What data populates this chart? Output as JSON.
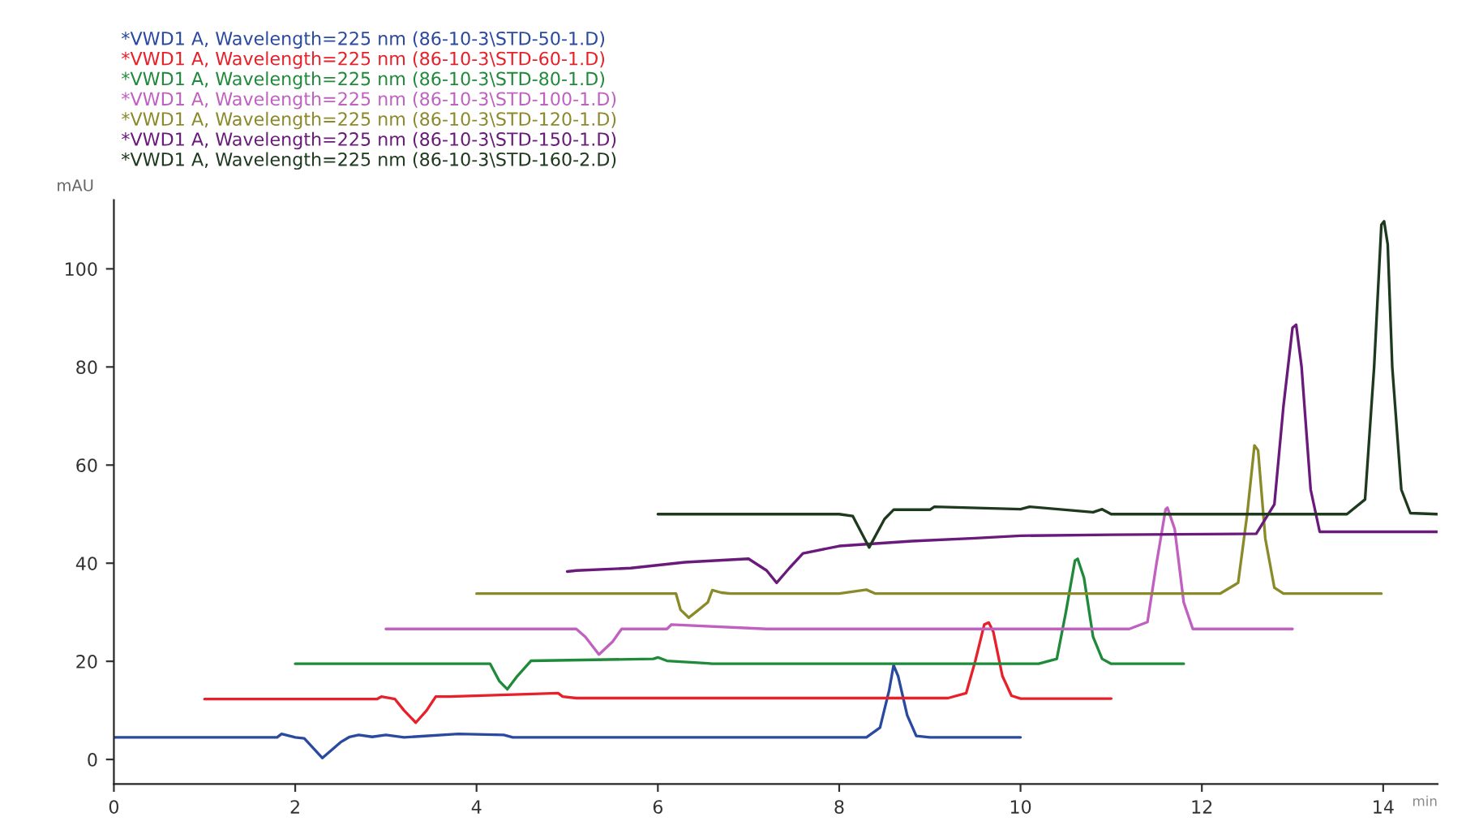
{
  "chart_data": {
    "type": "line",
    "xlabel": "min",
    "ylabel": "mAU",
    "xlim": [
      0,
      14.6
    ],
    "ylim": [
      -5,
      114
    ],
    "xticks": [
      0,
      2,
      4,
      6,
      8,
      10,
      12,
      14
    ],
    "yticks": [
      0,
      20,
      40,
      60,
      80,
      100
    ],
    "grid": false,
    "legend": "top left",
    "marker": "none",
    "line_style": "solid",
    "series": [
      {
        "name": "*VWD1 A, Wavelength=225 nm (86-10-3\\STD-50-1.D)",
        "color": "#2a4aa0",
        "x": [
          0,
          1.8,
          1.85,
          2.0,
          2.1,
          2.3,
          2.5,
          2.6,
          2.7,
          2.85,
          3.0,
          3.2,
          3.8,
          4.3,
          4.4,
          8.3,
          8.45,
          8.55,
          8.6,
          8.65,
          8.75,
          8.85,
          9.0,
          10
        ],
        "values": [
          4.5,
          4.5,
          5.2,
          4.5,
          4.3,
          0.3,
          3.5,
          4.6,
          5.0,
          4.6,
          5.0,
          4.5,
          5.2,
          5.0,
          4.5,
          4.5,
          6.5,
          14,
          19.2,
          17,
          9,
          4.8,
          4.5,
          4.5
        ]
      },
      {
        "name": "*VWD1 A, Wavelength=225 nm (86-10-3\\STD-60-1.D)",
        "color": "#e8202a",
        "x": [
          1,
          2.9,
          2.95,
          3.1,
          3.2,
          3.33,
          3.45,
          3.55,
          3.7,
          4.9,
          4.95,
          5.1,
          9.2,
          9.4,
          9.5,
          9.6,
          9.65,
          9.7,
          9.8,
          9.9,
          10.0,
          11.0
        ],
        "values": [
          12.3,
          12.3,
          12.8,
          12.3,
          10,
          7.5,
          10,
          12.8,
          12.8,
          13.5,
          12.8,
          12.5,
          12.5,
          13.5,
          20,
          27.5,
          27.9,
          26,
          17,
          13,
          12.4,
          12.4
        ]
      },
      {
        "name": "*VWD1 A, Wavelength=225 nm (86-10-3\\STD-80-1.D)",
        "color": "#1f8a3a",
        "x": [
          2,
          4.15,
          4.25,
          4.34,
          4.45,
          4.6,
          5.95,
          6.0,
          6.1,
          6.55,
          6.6,
          10.2,
          10.4,
          10.5,
          10.6,
          10.63,
          10.7,
          10.8,
          10.9,
          11.0,
          11.8
        ],
        "values": [
          19.5,
          19.5,
          16,
          14.3,
          17,
          20.1,
          20.5,
          20.8,
          20.1,
          19.6,
          19.5,
          19.5,
          20.5,
          30,
          40.5,
          40.9,
          37,
          25,
          20.5,
          19.5,
          19.5
        ]
      },
      {
        "name": "*VWD1 A, Wavelength=225 nm (86-10-3\\STD-100-1.D)",
        "color": "#c060c0",
        "x": [
          3,
          5.1,
          5.2,
          5.35,
          5.5,
          5.6,
          6.1,
          6.15,
          7.2,
          7.3,
          11.2,
          11.4,
          11.5,
          11.6,
          11.62,
          11.7,
          11.8,
          11.9,
          13.0
        ],
        "values": [
          26.6,
          26.6,
          25,
          21.4,
          24,
          26.6,
          26.6,
          27.5,
          26.6,
          26.6,
          26.6,
          28,
          40,
          51,
          51.3,
          47,
          32,
          26.6,
          26.6
        ]
      },
      {
        "name": "*VWD1 A, Wavelength=225 nm (86-10-3\\STD-120-1.D)",
        "color": "#8a8a2a",
        "x": [
          4,
          6.2,
          6.25,
          6.34,
          6.45,
          6.55,
          6.6,
          6.7,
          6.8,
          7.0,
          8.0,
          8.3,
          8.4,
          12.2,
          12.4,
          12.5,
          12.58,
          12.62,
          12.7,
          12.8,
          12.9,
          13.98
        ],
        "values": [
          33.8,
          33.8,
          30.5,
          28.9,
          30.5,
          32,
          34.5,
          34,
          33.8,
          33.8,
          33.8,
          34.6,
          33.8,
          33.8,
          36,
          50,
          64,
          63,
          45,
          35,
          33.8,
          33.8
        ]
      },
      {
        "name": "*VWD1 A, Wavelength=225 nm (86-10-3\\STD-150-1.D)",
        "color": "#6a1a7a",
        "x": [
          5,
          5.1,
          5.7,
          6.3,
          7.0,
          7.2,
          7.31,
          7.45,
          7.6,
          8.0,
          8.8,
          9.5,
          10.0,
          11.0,
          12.6,
          12.8,
          12.9,
          13.0,
          13.04,
          13.1,
          13.2,
          13.3,
          14.6
        ],
        "values": [
          38.3,
          38.5,
          39,
          40.2,
          40.9,
          38.5,
          36.0,
          39,
          42,
          43.5,
          44.5,
          45.1,
          45.6,
          45.8,
          46,
          52,
          72,
          88,
          88.6,
          80,
          55,
          46.4,
          46.4
        ]
      },
      {
        "name": "*VWD1 A, Wavelength=225 nm (86-10-3\\STD-160-2.D)",
        "color": "#1e3a1e",
        "x": [
          6,
          8.0,
          8.15,
          8.33,
          8.5,
          8.6,
          9.0,
          9.05,
          10.0,
          10.1,
          10.8,
          10.9,
          11.0,
          13.6,
          13.8,
          13.9,
          13.98,
          14.01,
          14.05,
          14.1,
          14.2,
          14.3,
          14.6
        ],
        "values": [
          50,
          50,
          49.6,
          43.2,
          49,
          50.9,
          50.9,
          51.5,
          51,
          51.5,
          50.4,
          51,
          50,
          50,
          53,
          80,
          109,
          109.7,
          105,
          80,
          55,
          50.2,
          50
        ]
      }
    ]
  }
}
